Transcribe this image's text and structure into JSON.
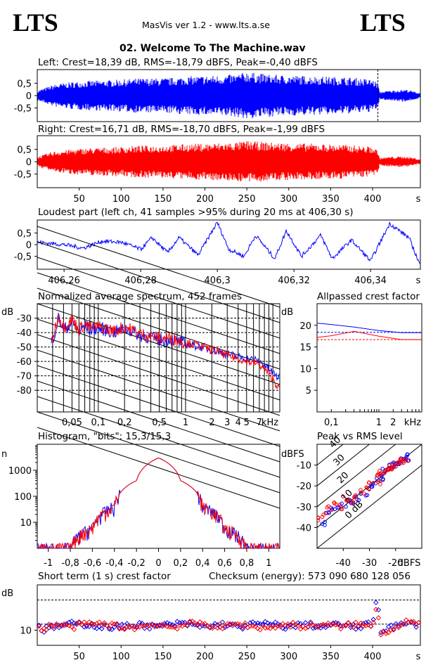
{
  "header": {
    "logo_left": "LTS",
    "logo_right": "LTS",
    "app": "MasVis ver 1.2 - www.lts.a.se",
    "track": "02. Welcome To The Machine.wav"
  },
  "colors": {
    "left": "#0000ff",
    "right": "#ff0000"
  },
  "panels": {
    "left_wave": {
      "title": "Left: Crest=18,39 dB, RMS=-18,79 dBFS, Peak=-0,40 dBFS",
      "yticks": [
        "0,5",
        "0",
        "-0,5"
      ]
    },
    "right_wave": {
      "title": "Right: Crest=16,71 dB, RMS=-18,70 dBFS, Peak=-1,99 dBFS",
      "yticks": [
        "0,5",
        "0",
        "-0,5"
      ]
    },
    "time_axis": {
      "ticks": [
        "50",
        "100",
        "150",
        "200",
        "250",
        "300",
        "350",
        "400"
      ],
      "unit": "s"
    },
    "loudest": {
      "title": "Loudest part (left  ch, 41 samples >95% during 20 ms at 406,30 s)",
      "yticks": [
        "0,5",
        "0",
        "-0,5"
      ],
      "xticks": [
        "406,26",
        "406,28",
        "406,3",
        "406,32",
        "406,34"
      ],
      "unit": "s"
    },
    "spectrum": {
      "title": "Normalized average spectrum, 452 frames",
      "ylabel": "dB",
      "yticks": [
        "-30",
        "-40",
        "-50",
        "-60",
        "-70",
        "-80"
      ],
      "xticks": [
        "0,05",
        "0,1",
        "0,2",
        "0,5",
        "1",
        "2",
        "3",
        "4",
        "5",
        "7"
      ],
      "unit": "kHz"
    },
    "allpass": {
      "title": "Allpassed crest factor",
      "ylabel": "dB",
      "yticks": [
        "20",
        "15",
        "10",
        "5"
      ],
      "xticks": [
        "0,1",
        "1",
        "2"
      ],
      "unit": "kHz"
    },
    "histogram": {
      "title": "Histogram, \"bits\": 15,3/15,3",
      "ylabel": "n",
      "yticks": [
        "1000",
        "100",
        "10"
      ],
      "xticks": [
        "-1",
        "-0,8",
        "-0,6",
        "-0,4",
        "-0,2",
        "0",
        "0,2",
        "0,4",
        "0,6",
        "0,8",
        "1"
      ]
    },
    "pvr": {
      "title": "Peak vs RMS level",
      "ylabel": "dBFS",
      "yticks": [
        "-10",
        "-20",
        "-30",
        "-40"
      ],
      "xticks": [
        "-40",
        "-30",
        "-20"
      ],
      "unit": "dBFS",
      "diag": [
        "40",
        "30",
        "20",
        "10",
        "0 dB"
      ]
    },
    "shortterm": {
      "title": "Short term (1 s) crest factor",
      "ylabel": "dB",
      "ytick": "10",
      "checksum": "Checksum (energy):   573 090 680 128 056",
      "xticks": [
        "50",
        "100",
        "150",
        "200",
        "250",
        "300",
        "350",
        "400"
      ],
      "unit": "s"
    }
  },
  "chart_data": [
    {
      "type": "area",
      "name": "Left waveform",
      "x_range": [
        0,
        457
      ],
      "ylim": [
        -1,
        1
      ],
      "envelope_x": [
        0,
        20,
        40,
        60,
        80,
        100,
        120,
        140,
        160,
        180,
        200,
        220,
        240,
        250,
        260,
        280,
        300,
        320,
        340,
        360,
        380,
        400,
        407,
        408,
        420,
        440,
        457
      ],
      "envelope_peak": [
        0.2,
        0.45,
        0.55,
        0.6,
        0.62,
        0.65,
        0.7,
        0.7,
        0.72,
        0.78,
        0.8,
        0.82,
        0.88,
        0.98,
        0.92,
        0.85,
        0.82,
        0.8,
        0.78,
        0.76,
        0.72,
        0.65,
        0.5,
        0.15,
        0.2,
        0.25,
        0.1
      ],
      "marker_x": 406.3
    },
    {
      "type": "area",
      "name": "Right waveform",
      "x_range": [
        0,
        457
      ],
      "ylim": [
        -1,
        1
      ],
      "envelope_x": [
        0,
        20,
        40,
        60,
        80,
        100,
        120,
        140,
        160,
        180,
        200,
        220,
        240,
        250,
        260,
        280,
        300,
        320,
        340,
        360,
        380,
        400,
        407,
        408,
        420,
        440,
        457
      ],
      "envelope_peak": [
        0.2,
        0.42,
        0.5,
        0.55,
        0.58,
        0.6,
        0.65,
        0.66,
        0.68,
        0.72,
        0.74,
        0.76,
        0.8,
        0.85,
        0.82,
        0.78,
        0.76,
        0.74,
        0.72,
        0.7,
        0.66,
        0.6,
        0.45,
        0.15,
        0.2,
        0.22,
        0.1
      ]
    },
    {
      "type": "line",
      "name": "Loudest part",
      "xlim": [
        406.253,
        406.353
      ],
      "ylim": [
        -1,
        1
      ],
      "x": [
        406.253,
        406.26,
        406.265,
        406.27,
        406.275,
        406.28,
        406.283,
        406.287,
        406.29,
        406.295,
        406.3,
        406.303,
        406.307,
        406.31,
        406.315,
        406.318,
        406.322,
        406.327,
        406.33,
        406.335,
        406.34,
        406.345,
        406.35,
        406.353
      ],
      "y": [
        0.1,
        0.0,
        -0.15,
        0.15,
        0.1,
        -0.2,
        0.3,
        -0.35,
        0.3,
        -0.45,
        0.95,
        -0.2,
        -0.5,
        0.4,
        -0.6,
        0.6,
        -0.5,
        0.4,
        -0.6,
        0.2,
        -0.7,
        0.9,
        0.3,
        -0.9
      ]
    },
    {
      "type": "line",
      "name": "Average spectrum",
      "xlim": [
        0.02,
        12
      ],
      "ylim": [
        -95,
        -20
      ],
      "series": [
        {
          "name": "L",
          "x": [
            0.02,
            0.025,
            0.03,
            0.035,
            0.04,
            0.05,
            0.06,
            0.07,
            0.08,
            0.1,
            0.15,
            0.2,
            0.3,
            0.5,
            0.7,
            1,
            2,
            3,
            4,
            5,
            7,
            10,
            12
          ],
          "y": [
            -62,
            -58,
            -45,
            -30,
            -38,
            -33,
            -40,
            -35,
            -38,
            -37,
            -40,
            -37,
            -42,
            -45,
            -45,
            -48,
            -52,
            -55,
            -57,
            -58,
            -60,
            -68,
            -72
          ]
        },
        {
          "name": "R",
          "x": [
            0.02,
            0.025,
            0.03,
            0.035,
            0.04,
            0.05,
            0.06,
            0.07,
            0.08,
            0.1,
            0.15,
            0.2,
            0.3,
            0.5,
            0.7,
            1,
            2,
            3,
            4,
            5,
            7,
            10,
            12
          ],
          "y": [
            -62,
            -57,
            -44,
            -28,
            -36,
            -31,
            -38,
            -34,
            -37,
            -36,
            -39,
            -36,
            -41,
            -44,
            -44,
            -47,
            -52,
            -56,
            -58,
            -60,
            -62,
            -72,
            -80
          ]
        }
      ]
    },
    {
      "type": "line",
      "name": "Allpassed crest factor",
      "xlim": [
        0.05,
        8
      ],
      "ylim": [
        0,
        25
      ],
      "series": [
        {
          "name": "L",
          "x": [
            0.05,
            0.1,
            0.3,
            1,
            3,
            8
          ],
          "y": [
            20.5,
            20.2,
            19.6,
            18.8,
            18.3,
            18.3
          ]
        },
        {
          "name": "R",
          "x": [
            0.05,
            0.1,
            0.3,
            1,
            3,
            8
          ],
          "y": [
            17.2,
            17.6,
            18.6,
            17.5,
            16.7,
            16.7
          ]
        }
      ],
      "ref_left": 18.39,
      "ref_right": 16.71
    },
    {
      "type": "line",
      "name": "Histogram",
      "xlim": [
        -1.1,
        1.1
      ],
      "ylog": true,
      "ylim": [
        1,
        10000
      ],
      "x": [
        -1,
        -0.8,
        -0.6,
        -0.4,
        -0.2,
        0,
        0.2,
        0.4,
        0.6,
        0.8,
        1
      ],
      "y": [
        1,
        1,
        6,
        40,
        400,
        3000,
        400,
        40,
        6,
        1,
        1
      ]
    },
    {
      "type": "scatter",
      "name": "Peak vs RMS",
      "xlim": [
        -50,
        -10
      ],
      "ylim": [
        -50,
        0
      ],
      "series": [
        {
          "name": "L",
          "x": [
            -48,
            -46,
            -44,
            -42,
            -40,
            -38,
            -36,
            -34,
            -32,
            -30,
            -28,
            -26,
            -25,
            -24,
            -23,
            -22,
            -21,
            -20,
            -19,
            -18,
            -17,
            -16,
            -15
          ],
          "y": [
            -38,
            -33,
            -30,
            -30,
            -29,
            -27,
            -28,
            -26,
            -24,
            -21,
            -20,
            -17,
            -16,
            -13,
            -12,
            -11,
            -10,
            -10,
            -9,
            -8,
            -8,
            -7,
            -6
          ]
        },
        {
          "name": "R",
          "x": [
            -49,
            -47,
            -45,
            -43,
            -41,
            -39,
            -37,
            -35,
            -33,
            -31,
            -29,
            -27,
            -26,
            -25,
            -24,
            -23,
            -22,
            -21,
            -20,
            -19,
            -18,
            -17,
            -16
          ],
          "y": [
            -36,
            -34,
            -31,
            -29,
            -30,
            -26,
            -27,
            -25,
            -23,
            -21,
            -19,
            -18,
            -15,
            -14,
            -13,
            -12,
            -11,
            -11,
            -10,
            -9,
            -8,
            -8,
            -7
          ]
        }
      ]
    },
    {
      "type": "scatter",
      "name": "Short term crest factor",
      "xlim": [
        0,
        457
      ],
      "ylim": [
        5,
        25
      ],
      "ref_lines": [
        12,
        20
      ],
      "series": [
        {
          "name": "L",
          "x": [
            5,
            20,
            40,
            60,
            80,
            100,
            120,
            140,
            160,
            180,
            200,
            220,
            240,
            260,
            280,
            300,
            320,
            340,
            360,
            380,
            400,
            405,
            410,
            420,
            440,
            455
          ],
          "y": [
            10,
            11,
            12,
            12,
            11,
            11,
            12,
            11,
            12,
            12,
            11,
            12,
            11,
            12,
            12,
            11,
            12,
            11,
            12,
            11,
            12,
            21,
            10,
            11,
            12,
            12
          ]
        },
        {
          "name": "R",
          "x": [
            5,
            20,
            40,
            60,
            80,
            100,
            120,
            140,
            160,
            180,
            200,
            220,
            240,
            260,
            280,
            300,
            320,
            340,
            360,
            380,
            400,
            405,
            410,
            420,
            440,
            455
          ],
          "y": [
            10,
            12,
            11,
            12,
            12,
            11,
            11,
            12,
            11,
            12,
            12,
            11,
            12,
            11,
            11,
            12,
            11,
            12,
            11,
            12,
            11,
            19,
            9,
            10,
            13,
            12
          ]
        }
      ]
    }
  ]
}
